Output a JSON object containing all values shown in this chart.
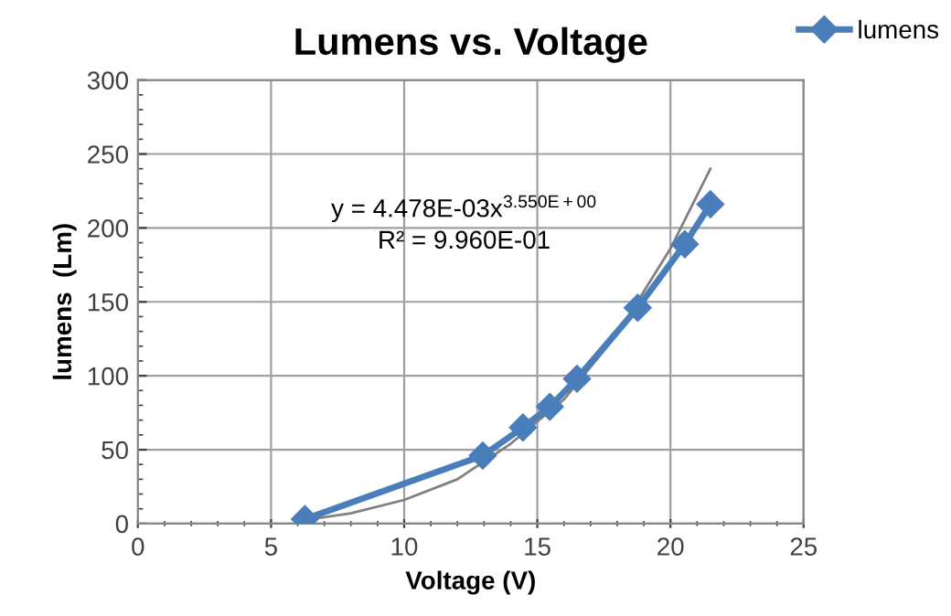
{
  "chart_data": {
    "type": "line",
    "title": "Lumens vs. Voltage",
    "xlabel": "Voltage (V)",
    "ylabel": "lumens  (Lm)",
    "xlim": [
      0,
      25
    ],
    "xticks": [
      0,
      5,
      10,
      15,
      20,
      25
    ],
    "ylim": [
      0,
      300
    ],
    "yticks": [
      0,
      50,
      100,
      150,
      200,
      250,
      300
    ],
    "grid": true,
    "legend": "top right",
    "marker": "diamond",
    "line_style": "solid",
    "series": [
      {
        "name": "lumens",
        "color": "#4a7ebb",
        "x": [
          6.27,
          12.95,
          14.46,
          15.47,
          16.49,
          18.77,
          20.54,
          21.5
        ],
        "values": [
          3,
          46,
          65,
          79,
          98,
          146,
          189,
          216
        ]
      },
      {
        "color": "#808080",
        "marker": "none",
        "x": [
          6.5,
          8,
          10,
          12,
          14,
          16,
          18,
          20,
          21.5
        ],
        "values": [
          3,
          7,
          16,
          30,
          54,
          84,
          128,
          186,
          240
        ]
      }
    ],
    "annotations": [
      "y = 4.478E-03x$^{3.550E+00}$",
      "R² = 9.960E-01"
    ]
  }
}
